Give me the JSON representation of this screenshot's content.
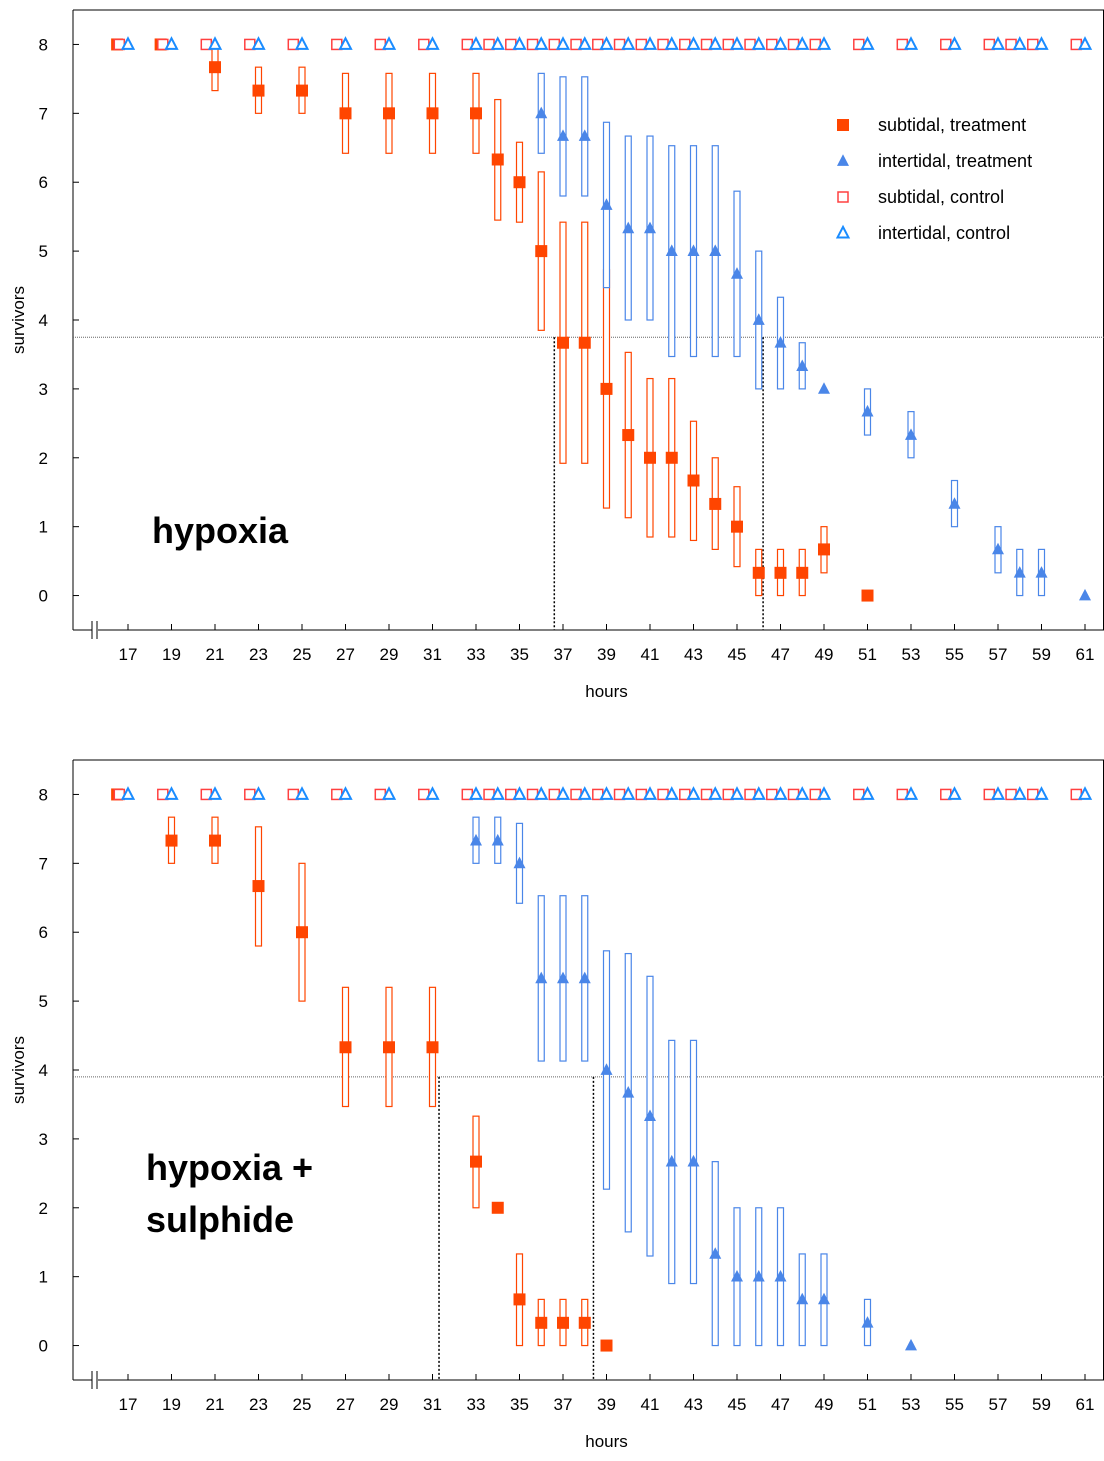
{
  "colors": {
    "subtidal": "#ff4500",
    "intertidal": "#4a86e8",
    "subtidal_control": "#ff4040",
    "intertidal_control": "#1a8cff",
    "axis": "#000000",
    "refline": "#666666"
  },
  "legend": {
    "items": [
      {
        "label": "subtidal, treatment",
        "marker": "filled-square",
        "group": "sub"
      },
      {
        "label": "intertidal, treatment",
        "marker": "filled-triangle",
        "group": "int"
      },
      {
        "label": "subtidal, control",
        "marker": "open-square",
        "group": "sub"
      },
      {
        "label": "intertidal, control",
        "marker": "open-triangle",
        "group": "int"
      }
    ]
  },
  "chart_data": [
    {
      "type": "scatter",
      "annotation": "hypoxia",
      "xlabel": "hours",
      "ylabel": "survivors",
      "x_ticks": [
        17,
        19,
        21,
        23,
        25,
        27,
        29,
        31,
        33,
        35,
        37,
        39,
        41,
        43,
        45,
        47,
        49,
        51,
        53,
        55,
        57,
        59,
        61
      ],
      "y_ticks": [
        0,
        1,
        2,
        3,
        4,
        5,
        6,
        7,
        8
      ],
      "ylim": [
        -0.5,
        8.5
      ],
      "axis_break": true,
      "legend_position": "top-right",
      "reference_line_y": 3.75,
      "reference_verticals": [
        36.6,
        46.2
      ],
      "series": [
        {
          "name": "subtidal, treatment",
          "points": [
            {
              "x": 16.5,
              "y": 8
            },
            {
              "x": 18.5,
              "y": 8
            },
            {
              "x": 21,
              "y": 7.67,
              "lo": 7.33,
              "hi": 8
            },
            {
              "x": 23,
              "y": 7.33,
              "lo": 7.0,
              "hi": 7.67
            },
            {
              "x": 25,
              "y": 7.33,
              "lo": 7.0,
              "hi": 7.67
            },
            {
              "x": 27,
              "y": 7,
              "lo": 6.42,
              "hi": 7.58
            },
            {
              "x": 29,
              "y": 7,
              "lo": 6.42,
              "hi": 7.58
            },
            {
              "x": 31,
              "y": 7,
              "lo": 6.42,
              "hi": 7.58
            },
            {
              "x": 33,
              "y": 7,
              "lo": 6.42,
              "hi": 7.58
            },
            {
              "x": 34,
              "y": 6.33,
              "lo": 5.45,
              "hi": 7.2
            },
            {
              "x": 35,
              "y": 6,
              "lo": 5.42,
              "hi": 6.58
            },
            {
              "x": 36,
              "y": 5,
              "lo": 3.85,
              "hi": 6.15
            },
            {
              "x": 37,
              "y": 3.67,
              "lo": 1.92,
              "hi": 5.42
            },
            {
              "x": 38,
              "y": 3.67,
              "lo": 1.92,
              "hi": 5.42
            },
            {
              "x": 39,
              "y": 3,
              "lo": 1.27,
              "hi": 4.73
            },
            {
              "x": 40,
              "y": 2.33,
              "lo": 1.13,
              "hi": 3.53
            },
            {
              "x": 41,
              "y": 2,
              "lo": 0.85,
              "hi": 3.15
            },
            {
              "x": 42,
              "y": 2,
              "lo": 0.85,
              "hi": 3.15
            },
            {
              "x": 43,
              "y": 1.67,
              "lo": 0.8,
              "hi": 2.53
            },
            {
              "x": 44,
              "y": 1.33,
              "lo": 0.67,
              "hi": 2.0
            },
            {
              "x": 45,
              "y": 1,
              "lo": 0.42,
              "hi": 1.58
            },
            {
              "x": 46,
              "y": 0.33,
              "lo": 0,
              "hi": 0.67
            },
            {
              "x": 47,
              "y": 0.33,
              "lo": 0,
              "hi": 0.67
            },
            {
              "x": 48,
              "y": 0.33,
              "lo": 0,
              "hi": 0.67
            },
            {
              "x": 49,
              "y": 0.67,
              "lo": 0.33,
              "hi": 1.0
            },
            {
              "x": 51,
              "y": 0
            }
          ]
        },
        {
          "name": "intertidal, treatment",
          "points": [
            {
              "x": 36,
              "y": 7,
              "lo": 6.42,
              "hi": 7.58
            },
            {
              "x": 37,
              "y": 6.67,
              "lo": 5.8,
              "hi": 7.53
            },
            {
              "x": 38,
              "y": 6.67,
              "lo": 5.8,
              "hi": 7.53
            },
            {
              "x": 39,
              "y": 5.67,
              "lo": 4.47,
              "hi": 6.87
            },
            {
              "x": 40,
              "y": 5.33,
              "lo": 4.0,
              "hi": 6.67
            },
            {
              "x": 41,
              "y": 5.33,
              "lo": 4.0,
              "hi": 6.67
            },
            {
              "x": 42,
              "y": 5,
              "lo": 3.47,
              "hi": 6.53
            },
            {
              "x": 43,
              "y": 5,
              "lo": 3.47,
              "hi": 6.53
            },
            {
              "x": 44,
              "y": 5,
              "lo": 3.47,
              "hi": 6.53
            },
            {
              "x": 45,
              "y": 4.67,
              "lo": 3.47,
              "hi": 5.87
            },
            {
              "x": 46,
              "y": 4,
              "lo": 3.0,
              "hi": 5.0
            },
            {
              "x": 47,
              "y": 3.67,
              "lo": 3.0,
              "hi": 4.33
            },
            {
              "x": 48,
              "y": 3.33,
              "lo": 3.0,
              "hi": 3.67
            },
            {
              "x": 49,
              "y": 3
            },
            {
              "x": 51,
              "y": 2.67,
              "lo": 2.33,
              "hi": 3.0
            },
            {
              "x": 53,
              "y": 2.33,
              "lo": 2.0,
              "hi": 2.67
            },
            {
              "x": 55,
              "y": 1.33,
              "lo": 1.0,
              "hi": 1.67
            },
            {
              "x": 57,
              "y": 0.67,
              "lo": 0.33,
              "hi": 1.0
            },
            {
              "x": 58,
              "y": 0.33,
              "lo": 0,
              "hi": 0.67
            },
            {
              "x": 59,
              "y": 0.33,
              "lo": 0,
              "hi": 0.67
            },
            {
              "x": 61,
              "y": 0
            }
          ]
        },
        {
          "name": "subtidal, control",
          "x": [
            16.6,
            18.6,
            20.6,
            22.6,
            24.6,
            26.6,
            28.6,
            30.6,
            32.6,
            33.6,
            34.6,
            35.6,
            36.6,
            37.6,
            38.6,
            39.6,
            40.6,
            41.6,
            42.6,
            43.6,
            44.6,
            45.6,
            46.6,
            47.6,
            48.6,
            50.6,
            52.6,
            54.6,
            56.6,
            57.6,
            58.6,
            60.6
          ],
          "y_value": 8
        },
        {
          "name": "intertidal, control",
          "x": [
            17.0,
            19.0,
            21.0,
            23.0,
            25.0,
            27.0,
            29.0,
            31.0,
            33.0,
            34.0,
            35.0,
            36.0,
            37.0,
            38.0,
            39.0,
            40.0,
            41.0,
            42.0,
            43.0,
            44.0,
            45.0,
            46.0,
            47.0,
            48.0,
            49.0,
            51.0,
            53.0,
            55.0,
            57.0,
            58.0,
            59.0,
            61.0
          ],
          "y_value": 8
        }
      ]
    },
    {
      "type": "scatter",
      "annotation": "hypoxia +\nsulphide",
      "annotation_lines": [
        "hypoxia +",
        "sulphide"
      ],
      "xlabel": "hours",
      "ylabel": "survivors",
      "x_ticks": [
        17,
        19,
        21,
        23,
        25,
        27,
        29,
        31,
        33,
        35,
        37,
        39,
        41,
        43,
        45,
        47,
        49,
        51,
        53,
        55,
        57,
        59,
        61
      ],
      "y_ticks": [
        0,
        1,
        2,
        3,
        4,
        5,
        6,
        7,
        8
      ],
      "ylim": [
        -0.5,
        8.5
      ],
      "axis_break": true,
      "reference_line_y": 3.9,
      "reference_verticals": [
        31.3,
        38.4
      ],
      "series": [
        {
          "name": "subtidal, treatment",
          "points": [
            {
              "x": 16.5,
              "y": 8
            },
            {
              "x": 19,
              "y": 7.33,
              "lo": 7.0,
              "hi": 7.67
            },
            {
              "x": 21,
              "y": 7.33,
              "lo": 7.0,
              "hi": 7.67
            },
            {
              "x": 23,
              "y": 6.67,
              "lo": 5.8,
              "hi": 7.53
            },
            {
              "x": 25,
              "y": 6,
              "lo": 5.0,
              "hi": 7.0
            },
            {
              "x": 27,
              "y": 4.33,
              "lo": 3.47,
              "hi": 5.2
            },
            {
              "x": 29,
              "y": 4.33,
              "lo": 3.47,
              "hi": 5.2
            },
            {
              "x": 31,
              "y": 4.33,
              "lo": 3.47,
              "hi": 5.2
            },
            {
              "x": 33,
              "y": 2.67,
              "lo": 2.0,
              "hi": 3.33
            },
            {
              "x": 34,
              "y": 2
            },
            {
              "x": 35,
              "y": 0.67,
              "lo": 0,
              "hi": 1.33
            },
            {
              "x": 36,
              "y": 0.33,
              "lo": 0,
              "hi": 0.67
            },
            {
              "x": 37,
              "y": 0.33,
              "lo": 0,
              "hi": 0.67
            },
            {
              "x": 38,
              "y": 0.33,
              "lo": 0,
              "hi": 0.67
            },
            {
              "x": 39,
              "y": 0
            }
          ]
        },
        {
          "name": "intertidal, treatment",
          "points": [
            {
              "x": 33,
              "y": 7.33,
              "lo": 7.0,
              "hi": 7.67
            },
            {
              "x": 34,
              "y": 7.33,
              "lo": 7.0,
              "hi": 7.67
            },
            {
              "x": 35,
              "y": 7,
              "lo": 6.42,
              "hi": 7.58
            },
            {
              "x": 36,
              "y": 5.33,
              "lo": 4.13,
              "hi": 6.53
            },
            {
              "x": 37,
              "y": 5.33,
              "lo": 4.13,
              "hi": 6.53
            },
            {
              "x": 38,
              "y": 5.33,
              "lo": 4.13,
              "hi": 6.53
            },
            {
              "x": 39,
              "y": 4,
              "lo": 2.27,
              "hi": 5.73
            },
            {
              "x": 40,
              "y": 3.67,
              "lo": 1.65,
              "hi": 5.69
            },
            {
              "x": 41,
              "y": 3.33,
              "lo": 1.3,
              "hi": 5.36
            },
            {
              "x": 42,
              "y": 2.67,
              "lo": 0.9,
              "hi": 4.43
            },
            {
              "x": 43,
              "y": 2.67,
              "lo": 0.9,
              "hi": 4.43
            },
            {
              "x": 44,
              "y": 1.33,
              "lo": 0,
              "hi": 2.67
            },
            {
              "x": 45,
              "y": 1,
              "lo": 0,
              "hi": 2.0
            },
            {
              "x": 46,
              "y": 1,
              "lo": 0,
              "hi": 2.0
            },
            {
              "x": 47,
              "y": 1,
              "lo": 0,
              "hi": 2.0
            },
            {
              "x": 48,
              "y": 0.67,
              "lo": 0,
              "hi": 1.33
            },
            {
              "x": 49,
              "y": 0.67,
              "lo": 0,
              "hi": 1.33
            },
            {
              "x": 51,
              "y": 0.33,
              "lo": 0,
              "hi": 0.67
            },
            {
              "x": 53,
              "y": 0
            }
          ]
        },
        {
          "name": "subtidal, control",
          "x": [
            16.6,
            18.6,
            20.6,
            22.6,
            24.6,
            26.6,
            28.6,
            30.6,
            32.6,
            33.6,
            34.6,
            35.6,
            36.6,
            37.6,
            38.6,
            39.6,
            40.6,
            41.6,
            42.6,
            43.6,
            44.6,
            45.6,
            46.6,
            47.6,
            48.6,
            50.6,
            52.6,
            54.6,
            56.6,
            57.6,
            58.6,
            60.6
          ],
          "y_value": 8
        },
        {
          "name": "intertidal, control",
          "x": [
            17.0,
            19.0,
            21.0,
            23.0,
            25.0,
            27.0,
            29.0,
            31.0,
            33.0,
            34.0,
            35.0,
            36.0,
            37.0,
            38.0,
            39.0,
            40.0,
            41.0,
            42.0,
            43.0,
            44.0,
            45.0,
            46.0,
            47.0,
            48.0,
            49.0,
            51.0,
            53.0,
            55.0,
            57.0,
            58.0,
            59.0,
            61.0
          ],
          "y_value": 8
        }
      ]
    }
  ]
}
